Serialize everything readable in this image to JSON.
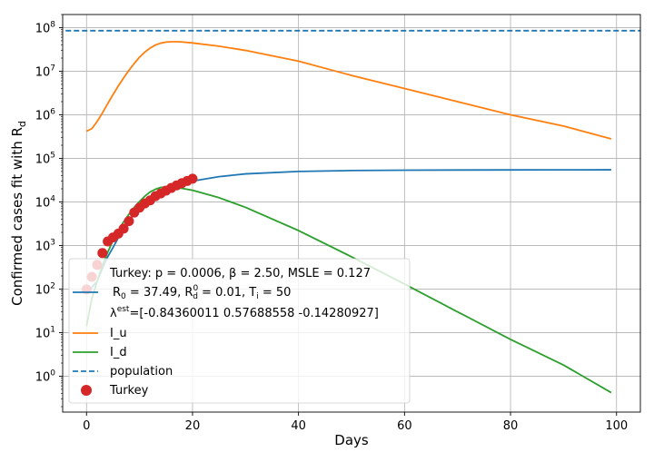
{
  "chart_data": {
    "type": "line",
    "xlabel": "Days",
    "ylabel_main": "Confirmed cases fit with R",
    "ylabel_sub": "d",
    "xlim": [
      -4.5,
      104.5
    ],
    "ylim": [
      0.15,
      200000000
    ],
    "yscale": "log",
    "grid": true,
    "legend_placement": "lower-left",
    "x_ticks": [
      0,
      20,
      40,
      60,
      80,
      100
    ],
    "x_tick_labels": [
      "0",
      "20",
      "40",
      "60",
      "80",
      "100"
    ],
    "y_ticks": [
      1,
      10,
      100,
      1000,
      10000,
      100000,
      1000000,
      10000000,
      100000000
    ],
    "y_tick_exponents": [
      "0",
      "1",
      "2",
      "3",
      "4",
      "5",
      "6",
      "7",
      "8"
    ],
    "y_tick_base": "10",
    "legend": {
      "line1": "Turkey: p = 0.0006,  β =  2.50, MSLE = 0.127",
      "line2_r0": "R",
      "line2_r0_sub": "0",
      "line2_r0_val": " = 37.49, R",
      "line2_r0d_sup": "0",
      "line2_r0d_sub": "d",
      "line2_r0d_val": " = 0.01, T",
      "line2_ti_sub": "i",
      "line2_ti_val": " = 50",
      "line3_lambda": "λ",
      "line3_sup": "est",
      "line3_val": "=[-0.84360011  0.57688558 -0.14280927]",
      "iu": "I_u",
      "id": "I_d",
      "population": "population",
      "turkey": "Turkey"
    },
    "colors": {
      "rd": "#1f77b4",
      "iu": "#ff7f0e",
      "id": "#2ca02c",
      "population": "#1f77b4",
      "turkey": "#d62728"
    },
    "series": [
      {
        "key": "rd",
        "x": [
          0,
          2,
          3,
          4,
          5,
          6,
          7,
          8,
          9,
          10,
          12,
          14,
          16,
          18,
          20,
          25,
          30,
          40,
          50,
          60,
          70,
          80,
          90,
          99
        ],
        "y": [
          80,
          150,
          300,
          550,
          900,
          1500,
          2400,
          3700,
          5300,
          7400,
          12000,
          17000,
          22000,
          26500,
          30000,
          38000,
          44000,
          50000,
          52500,
          53500,
          54000,
          54300,
          54500,
          54600
        ]
      },
      {
        "key": "iu",
        "x": [
          0,
          1,
          2,
          3,
          4,
          5,
          6,
          7,
          8,
          9,
          10,
          11,
          12,
          13,
          14,
          15,
          16,
          17,
          18,
          20,
          25,
          30,
          40,
          50,
          60,
          70,
          80,
          90,
          99
        ],
        "y": [
          420000,
          480000,
          700000,
          1100000,
          1800000,
          2900000,
          4600000,
          7000000,
          10500000,
          15000000,
          21000000,
          27500000,
          34000000,
          40000000,
          44000000,
          46500000,
          47500000,
          47500000,
          46800000,
          44500000,
          37500000,
          30000000,
          17000000,
          8000000,
          4000000,
          2000000,
          1000000,
          550000,
          280000
        ]
      },
      {
        "key": "id",
        "x": [
          0,
          1,
          2,
          3,
          4,
          5,
          6,
          7,
          8,
          9,
          10,
          11,
          12,
          13,
          14,
          15,
          16,
          18,
          20,
          25,
          30,
          40,
          50,
          60,
          70,
          80,
          90,
          99
        ],
        "y": [
          14,
          60,
          150,
          350,
          700,
          1300,
          2200,
          3500,
          5200,
          7500,
          10200,
          13500,
          17000,
          19500,
          21500,
          22000,
          21800,
          20500,
          18500,
          12500,
          7500,
          2200,
          550,
          130,
          30,
          7,
          1.8,
          0.42
        ]
      }
    ],
    "population": 85000000,
    "turkey_points": {
      "x": [
        0,
        1,
        2,
        3,
        4,
        5,
        6,
        7,
        8,
        9,
        10,
        11,
        12,
        13,
        14,
        15,
        16,
        17,
        18,
        19,
        20
      ],
      "y": [
        98,
        191,
        359,
        670,
        1236,
        1529,
        1872,
        2433,
        3629,
        5698,
        7402,
        9217,
        10827,
        13531,
        15679,
        18135,
        20921,
        23934,
        27069,
        30217,
        34109
      ]
    }
  }
}
